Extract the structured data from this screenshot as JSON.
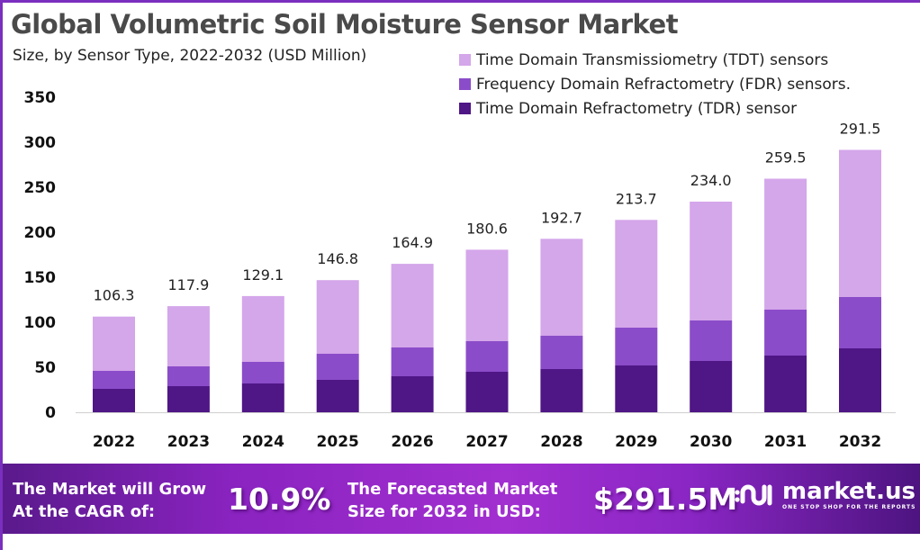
{
  "header": {
    "title": "Global Volumetric Soil Moisture Sensor Market",
    "subtitle": "Size, by Sensor Type, 2022-2032 (USD Million)"
  },
  "colors": {
    "frame": "#7b2fbe",
    "tdt": "#d4a6ea",
    "fdr": "#8b4cc9",
    "tdr": "#4f1686"
  },
  "chart_data": {
    "type": "bar",
    "stacked": true,
    "title": "Global Volumetric Soil Moisture Sensor Market",
    "subtitle": "Size, by Sensor Type, 2022-2032 (USD Million)",
    "xlabel": "",
    "ylabel": "",
    "ylim": [
      0,
      350
    ],
    "yticks": [
      0,
      50,
      100,
      150,
      200,
      250,
      300,
      350
    ],
    "grid": false,
    "legend_position": "top-right",
    "categories": [
      "2022",
      "2023",
      "2024",
      "2025",
      "2026",
      "2027",
      "2028",
      "2029",
      "2030",
      "2031",
      "2032"
    ],
    "series": [
      {
        "name": "Time Domain Refractometry (TDR) sensor",
        "color": "#4f1686",
        "values": [
          26,
          29,
          32,
          36,
          40,
          45,
          48,
          52,
          57,
          63,
          71
        ]
      },
      {
        "name": "Frequency Domain Refractometry (FDR) sensors.",
        "color": "#8b4cc9",
        "values": [
          20,
          22,
          24,
          29,
          32,
          34,
          37,
          42,
          45,
          51,
          57
        ]
      },
      {
        "name": "Time Domain Transmissiometry (TDT) sensors",
        "color": "#d4a6ea",
        "values": [
          60.3,
          66.9,
          73.1,
          81.8,
          92.9,
          101.6,
          107.7,
          119.7,
          132.0,
          145.5,
          163.5
        ]
      }
    ],
    "totals": [
      106.3,
      117.9,
      129.1,
      146.8,
      164.9,
      180.6,
      192.7,
      213.7,
      234.0,
      259.5,
      291.5
    ],
    "total_labels": [
      "106.3",
      "117.9",
      "129.1",
      "146.8",
      "164.9",
      "180.6",
      "192.7",
      "213.7",
      "234.0",
      "259.5",
      "291.5"
    ]
  },
  "legend": [
    {
      "label": "Time Domain Transmissiometry (TDT) sensors",
      "color": "#d4a6ea"
    },
    {
      "label": "Frequency Domain Refractometry (FDR) sensors.",
      "color": "#8b4cc9"
    },
    {
      "label": "Time Domain Refractometry (TDR) sensor",
      "color": "#4f1686"
    }
  ],
  "banner": {
    "cagr_line1": "The Market will Grow",
    "cagr_line2": "At the CAGR of:",
    "cagr_value": "10.9%",
    "forecast_line1": "The Forecasted Market",
    "forecast_line2": "Size for 2032 in USD:",
    "forecast_value": "$291.5M",
    "brand_name": "market.us",
    "brand_tagline": "ONE STOP SHOP FOR THE REPORTS"
  }
}
